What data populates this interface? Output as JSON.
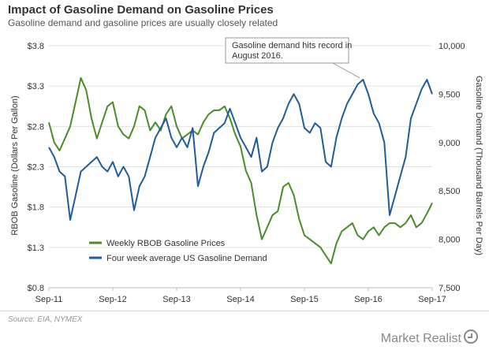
{
  "header": {
    "title": "Impact of Gasoline Demand on Gasoline Prices",
    "subtitle": "Gasoline demand and gasoline prices are usually closely related"
  },
  "footer": {
    "source": "Source: EIA, NYMEX",
    "brand": "Market Realist"
  },
  "chart_data": {
    "type": "line",
    "title": "Impact of Gasoline Demand on Gasoline Prices",
    "subtitle": "Gasoline demand and gasoline prices are usually closely related",
    "x_ticks": [
      "Sep-11",
      "Sep-12",
      "Sep-13",
      "Sep-14",
      "Sep-15",
      "Sep-16",
      "Sep-17"
    ],
    "y_left": {
      "label": "RBOB Gasoline (Dollars Per Gallon)",
      "ylim": [
        0.8,
        3.8
      ],
      "ticks": [
        "$3.8",
        "$3.3",
        "$2.8",
        "$2.3",
        "$1.8",
        "$1.3",
        "$0.8"
      ]
    },
    "y_right": {
      "label": "Gasoline Demand (Thousand Barrels Per Day)",
      "ylim": [
        7500,
        10000
      ],
      "ticks": [
        "10,000",
        "9,500",
        "9,000",
        "8,500",
        "8,000",
        "7,500"
      ]
    },
    "grid": true,
    "legend_position": "bottom-left",
    "annotation": {
      "lines": [
        "Gasoline demand hits record in",
        "August  2016."
      ]
    },
    "series": [
      {
        "name": "Weekly RBOB Gasoline Prices",
        "axis": "left",
        "color": "#4a8c2a",
        "x": [
          "2011-09",
          "2011-10",
          "2011-11",
          "2011-12",
          "2012-01",
          "2012-02",
          "2012-03",
          "2012-04",
          "2012-05",
          "2012-06",
          "2012-07",
          "2012-08",
          "2012-09",
          "2012-10",
          "2012-11",
          "2012-12",
          "2013-01",
          "2013-02",
          "2013-03",
          "2013-04",
          "2013-05",
          "2013-06",
          "2013-07",
          "2013-08",
          "2013-09",
          "2013-10",
          "2013-11",
          "2013-12",
          "2014-01",
          "2014-02",
          "2014-03",
          "2014-04",
          "2014-05",
          "2014-06",
          "2014-07",
          "2014-08",
          "2014-09",
          "2014-10",
          "2014-11",
          "2014-12",
          "2015-01",
          "2015-02",
          "2015-03",
          "2015-04",
          "2015-05",
          "2015-06",
          "2015-07",
          "2015-08",
          "2015-09",
          "2015-10",
          "2015-11",
          "2015-12",
          "2016-01",
          "2016-02",
          "2016-03",
          "2016-04",
          "2016-05",
          "2016-06",
          "2016-07",
          "2016-08",
          "2016-09",
          "2016-10",
          "2016-11",
          "2016-12",
          "2017-01",
          "2017-02",
          "2017-03",
          "2017-04",
          "2017-05",
          "2017-06",
          "2017-07",
          "2017-08",
          "2017-09"
        ],
        "values": [
          2.85,
          2.6,
          2.5,
          2.65,
          2.8,
          3.1,
          3.4,
          3.25,
          2.9,
          2.65,
          2.85,
          3.05,
          3.1,
          2.8,
          2.7,
          2.65,
          2.8,
          3.05,
          3.0,
          2.75,
          2.85,
          2.75,
          2.95,
          3.05,
          2.8,
          2.65,
          2.7,
          2.75,
          2.7,
          2.85,
          2.95,
          3.0,
          3.0,
          3.05,
          2.9,
          2.7,
          2.55,
          2.25,
          2.1,
          1.7,
          1.4,
          1.55,
          1.7,
          1.75,
          2.05,
          2.1,
          1.95,
          1.65,
          1.45,
          1.4,
          1.35,
          1.3,
          1.2,
          1.1,
          1.35,
          1.5,
          1.55,
          1.6,
          1.45,
          1.4,
          1.5,
          1.55,
          1.45,
          1.55,
          1.6,
          1.6,
          1.55,
          1.6,
          1.7,
          1.55,
          1.6,
          1.72,
          1.85
        ]
      },
      {
        "name": "Four week average US Gasoline Demand",
        "axis": "right",
        "color": "#1f5c99",
        "x": [
          "2011-09",
          "2011-10",
          "2011-11",
          "2011-12",
          "2012-01",
          "2012-02",
          "2012-03",
          "2012-04",
          "2012-05",
          "2012-06",
          "2012-07",
          "2012-08",
          "2012-09",
          "2012-10",
          "2012-11",
          "2012-12",
          "2013-01",
          "2013-02",
          "2013-03",
          "2013-04",
          "2013-05",
          "2013-06",
          "2013-07",
          "2013-08",
          "2013-09",
          "2013-10",
          "2013-11",
          "2013-12",
          "2014-01",
          "2014-02",
          "2014-03",
          "2014-04",
          "2014-05",
          "2014-06",
          "2014-07",
          "2014-08",
          "2014-09",
          "2014-10",
          "2014-11",
          "2014-12",
          "2015-01",
          "2015-02",
          "2015-03",
          "2015-04",
          "2015-05",
          "2015-06",
          "2015-07",
          "2015-08",
          "2015-09",
          "2015-10",
          "2015-11",
          "2015-12",
          "2016-01",
          "2016-02",
          "2016-03",
          "2016-04",
          "2016-05",
          "2016-06",
          "2016-07",
          "2016-08",
          "2016-09",
          "2016-10",
          "2016-11",
          "2016-12",
          "2017-01",
          "2017-02",
          "2017-03",
          "2017-04",
          "2017-05",
          "2017-06",
          "2017-07",
          "2017-08",
          "2017-09"
        ],
        "values": [
          8950,
          8850,
          8700,
          8650,
          8200,
          8450,
          8700,
          8750,
          8800,
          8850,
          8750,
          8700,
          8800,
          8650,
          8750,
          8650,
          8300,
          8550,
          8650,
          8850,
          9050,
          9150,
          9250,
          9050,
          8950,
          9050,
          8950,
          9150,
          8550,
          8750,
          8900,
          9100,
          9150,
          9200,
          9350,
          9200,
          9050,
          8950,
          8850,
          9050,
          8700,
          8750,
          9000,
          9150,
          9250,
          9400,
          9500,
          9400,
          9150,
          9100,
          9200,
          9150,
          8800,
          8750,
          9050,
          9250,
          9400,
          9500,
          9600,
          9650,
          9500,
          9300,
          9200,
          9000,
          8250,
          8450,
          8650,
          8850,
          9250,
          9400,
          9550,
          9650,
          9500
        ]
      }
    ]
  }
}
